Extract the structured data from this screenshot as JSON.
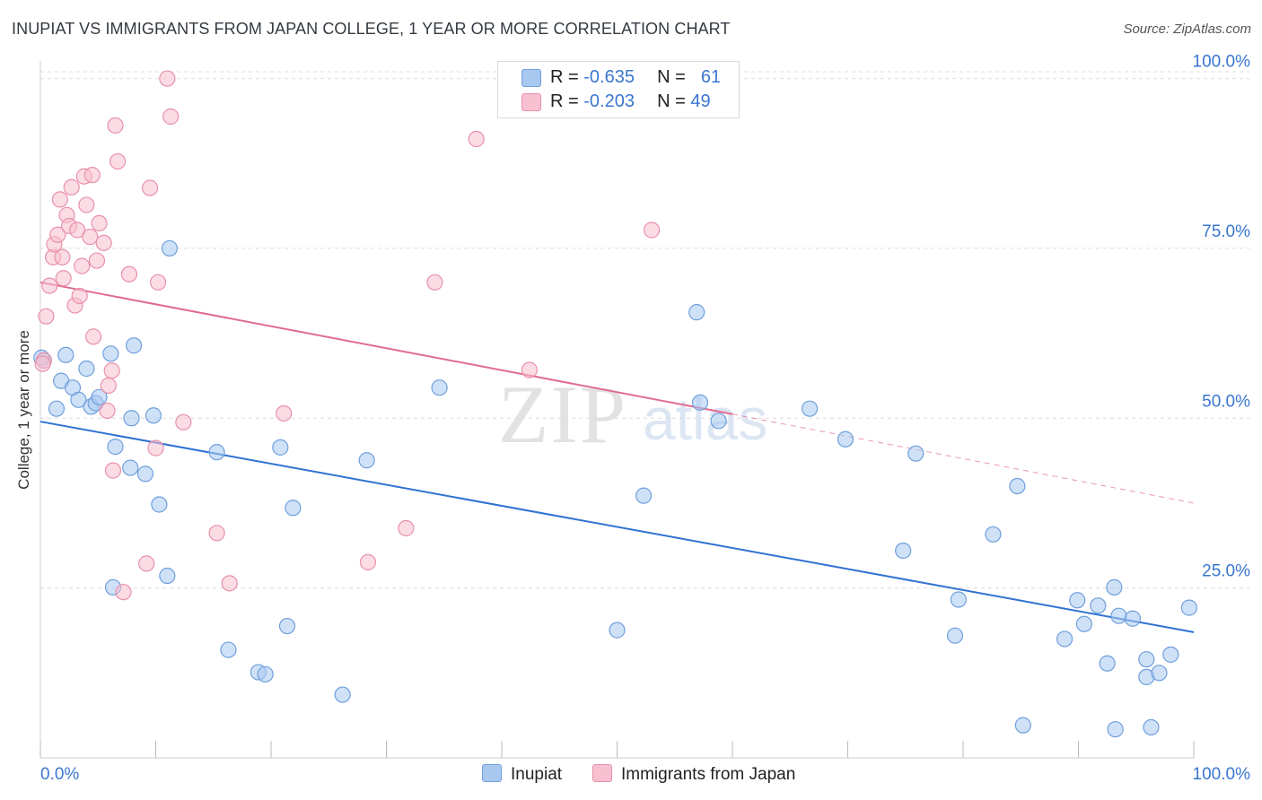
{
  "title": "INUPIAT VS IMMIGRANTS FROM JAPAN COLLEGE, 1 YEAR OR MORE CORRELATION CHART",
  "source": "Source: ZipAtlas.com",
  "watermark": {
    "zip": "ZIP",
    "atlas": "atlas"
  },
  "legend": {
    "rows": [
      {
        "r_label": "R =",
        "r_value": "-0.635",
        "n_label": "N =",
        "n_value": "61",
        "color": "#a8c8f0",
        "stroke": "#6f9fdc"
      },
      {
        "r_label": "R =",
        "r_value": "-0.203",
        "n_label": "N =",
        "n_value": "49",
        "color": "#f8c0d0",
        "stroke": "#e890aa"
      }
    ]
  },
  "bottom_legend": [
    {
      "label": "Inupiat",
      "color": "#a8c8f0",
      "stroke": "#6f9fdc"
    },
    {
      "label": "Immigrants from Japan",
      "color": "#f8c0d0",
      "stroke": "#e890aa"
    }
  ],
  "chart_data": {
    "type": "scatter",
    "title": "INUPIAT VS IMMIGRANTS FROM JAPAN COLLEGE, 1 YEAR OR MORE CORRELATION CHART",
    "xlabel": "",
    "ylabel": "College, 1 year or more",
    "xlim": [
      0,
      100
    ],
    "ylim": [
      0,
      101
    ],
    "x_tick_labels": [
      "0.0%",
      "100.0%"
    ],
    "y_ticks": [
      {
        "value": 25,
        "label": "25.0%"
      },
      {
        "value": 50,
        "label": "50.0%"
      },
      {
        "value": 75,
        "label": "75.0%"
      },
      {
        "value": 100,
        "label": "100.0%"
      }
    ],
    "series": [
      {
        "name": "Inupiat",
        "color": "#a8c8f0",
        "stroke": "#6f9fdc",
        "line_color": "#2f72d2",
        "trend": {
          "x0": 0,
          "y0": 49.5,
          "x1": 100,
          "y1": 18.5
        },
        "points": [
          [
            0.3,
            58.5
          ],
          [
            1.4,
            51.4
          ],
          [
            1.8,
            55.5
          ],
          [
            2.2,
            59.3
          ],
          [
            2.8,
            54.5
          ],
          [
            3.3,
            52.7
          ],
          [
            4.0,
            57.3
          ],
          [
            4.4,
            51.7
          ],
          [
            4.8,
            52.2
          ],
          [
            5.1,
            53.1
          ],
          [
            6.1,
            59.5
          ],
          [
            6.5,
            45.8
          ],
          [
            6.3,
            25.1
          ],
          [
            7.8,
            42.7
          ],
          [
            7.9,
            50.0
          ],
          [
            8.1,
            60.7
          ],
          [
            9.1,
            41.8
          ],
          [
            9.8,
            50.4
          ],
          [
            10.3,
            37.3
          ],
          [
            11.0,
            26.8
          ],
          [
            11.2,
            75.0
          ],
          [
            15.3,
            45.0
          ],
          [
            16.3,
            15.9
          ],
          [
            18.9,
            12.6
          ],
          [
            19.5,
            12.3
          ],
          [
            20.8,
            45.7
          ],
          [
            21.4,
            19.4
          ],
          [
            21.9,
            36.8
          ],
          [
            26.2,
            9.3
          ],
          [
            28.3,
            43.8
          ],
          [
            34.6,
            54.5
          ],
          [
            50.0,
            18.8
          ],
          [
            52.3,
            38.6
          ],
          [
            56.9,
            65.6
          ],
          [
            57.2,
            52.3
          ],
          [
            58.8,
            49.6
          ],
          [
            66.7,
            51.4
          ],
          [
            69.8,
            46.9
          ],
          [
            74.8,
            30.5
          ],
          [
            75.9,
            44.8
          ],
          [
            79.6,
            23.3
          ],
          [
            79.3,
            18.0
          ],
          [
            82.6,
            32.9
          ],
          [
            84.7,
            40.0
          ],
          [
            85.2,
            4.8
          ],
          [
            88.8,
            17.5
          ],
          [
            89.9,
            23.2
          ],
          [
            90.5,
            19.7
          ],
          [
            91.7,
            22.4
          ],
          [
            93.1,
            25.1
          ],
          [
            92.5,
            13.9
          ],
          [
            93.2,
            4.2
          ],
          [
            93.5,
            20.9
          ],
          [
            94.7,
            20.5
          ],
          [
            95.9,
            11.9
          ],
          [
            95.9,
            14.5
          ],
          [
            96.3,
            4.5
          ],
          [
            97.0,
            12.5
          ],
          [
            98.0,
            15.2
          ],
          [
            99.6,
            22.1
          ],
          [
            0.1,
            58.9
          ]
        ]
      },
      {
        "name": "Immigrants from Japan",
        "color": "#f8c0d0",
        "stroke": "#e890aa",
        "line_color": "#e06c92",
        "trend": {
          "x0": 0,
          "y0": 70.0,
          "x1": 60,
          "y1": 50.6
        },
        "trend_dashed": {
          "x0": 60,
          "y0": 50.6,
          "x1": 100,
          "y1": 37.5
        },
        "points": [
          [
            0.3,
            58.5
          ],
          [
            0.5,
            65.0
          ],
          [
            0.8,
            69.5
          ],
          [
            1.1,
            73.7
          ],
          [
            1.2,
            75.6
          ],
          [
            1.5,
            77.0
          ],
          [
            1.7,
            82.2
          ],
          [
            1.9,
            73.7
          ],
          [
            2.0,
            70.6
          ],
          [
            2.3,
            79.9
          ],
          [
            2.5,
            78.3
          ],
          [
            2.7,
            84.0
          ],
          [
            3.0,
            66.6
          ],
          [
            3.2,
            77.7
          ],
          [
            3.4,
            68.0
          ],
          [
            3.6,
            72.4
          ],
          [
            3.8,
            85.6
          ],
          [
            4.0,
            81.4
          ],
          [
            4.3,
            76.7
          ],
          [
            4.5,
            85.8
          ],
          [
            4.6,
            62.0
          ],
          [
            4.9,
            73.2
          ],
          [
            5.1,
            78.7
          ],
          [
            5.5,
            75.8
          ],
          [
            5.8,
            51.1
          ],
          [
            5.9,
            54.8
          ],
          [
            6.2,
            57.0
          ],
          [
            6.3,
            42.3
          ],
          [
            6.5,
            93.1
          ],
          [
            6.7,
            87.8
          ],
          [
            7.2,
            24.4
          ],
          [
            7.7,
            71.2
          ],
          [
            9.2,
            28.6
          ],
          [
            9.5,
            83.9
          ],
          [
            10.0,
            45.6
          ],
          [
            10.2,
            70.0
          ],
          [
            11.0,
            100.0
          ],
          [
            11.3,
            94.4
          ],
          [
            12.4,
            49.4
          ],
          [
            15.3,
            33.1
          ],
          [
            16.4,
            25.7
          ],
          [
            21.1,
            50.7
          ],
          [
            28.4,
            28.8
          ],
          [
            31.7,
            33.8
          ],
          [
            34.2,
            70.0
          ],
          [
            37.8,
            91.1
          ],
          [
            42.4,
            57.1
          ],
          [
            53.0,
            77.7
          ],
          [
            0.2,
            58.0
          ]
        ]
      }
    ]
  }
}
